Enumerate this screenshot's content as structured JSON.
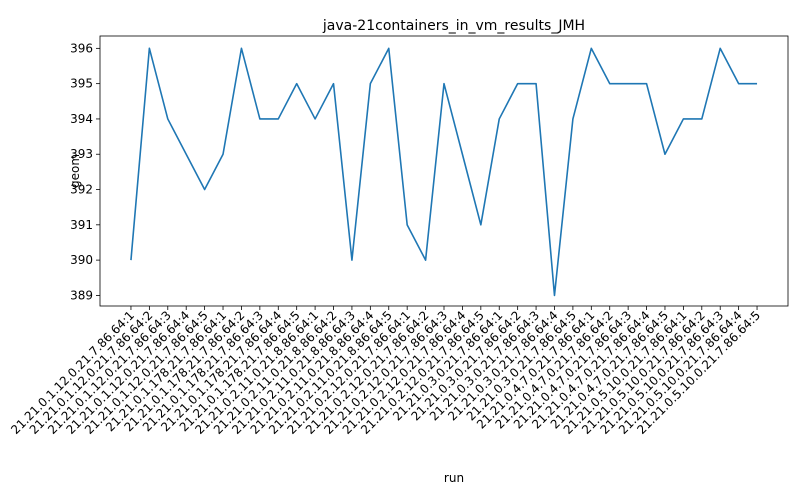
{
  "chart_data": {
    "type": "line",
    "title": "java-21containers_in_vm_results_JMH",
    "xlabel": "run",
    "ylabel": "geom",
    "ylim": [
      388.7,
      396.35
    ],
    "yticks": [
      389,
      390,
      391,
      392,
      393,
      394,
      395,
      396
    ],
    "grid": false,
    "line_color": "#1f77b4",
    "categories": [
      "21.21.0.1.12.0.21.7.86.64:1",
      "21.21.0.1.12.0.21.7.86.64:2",
      "21.21.0.1.12.0.21.7.86.64:3",
      "21.21.0.1.12.0.21.7.86.64:4",
      "21.21.0.1.12.0.21.7.86.64:5",
      "21.21.0.1.178.21.7.86.64:1",
      "21.21.0.1.178.21.7.86.64:2",
      "21.21.0.1.178.21.7.86.64:3",
      "21.21.0.1.178.21.7.86.64:4",
      "21.21.0.1.178.21.7.86.64:5",
      "21.21.0.2.11.0.21.8.86.64:1",
      "21.21.0.2.11.0.21.8.86.64:2",
      "21.21.0.2.11.0.21.8.86.64:3",
      "21.21.0.2.11.0.21.8.86.64:4",
      "21.21.0.2.11.0.21.8.86.64:5",
      "21.21.0.2.12.0.21.7.86.64:1",
      "21.21.0.2.12.0.21.7.86.64:2",
      "21.21.0.2.12.0.21.7.86.64:3",
      "21.21.0.2.12.0.21.7.86.64:4",
      "21.21.0.2.12.0.21.7.86.64:5",
      "21.21.0.3.0.21.7.86.64:1",
      "21.21.0.3.0.21.7.86.64:2",
      "21.21.0.3.0.21.7.86.64:3",
      "21.21.0.3.0.21.7.86.64:4",
      "21.21.0.3.0.21.7.86.64:5",
      "21.21.0.4.7.0.21.7.86.64:1",
      "21.21.0.4.7.0.21.7.86.64:2",
      "21.21.0.4.7.0.21.7.86.64:3",
      "21.21.0.4.7.0.21.7.86.64:4",
      "21.21.0.4.7.0.21.7.86.64:5",
      "21.21.0.5.10.0.21.7.86.64:1",
      "21.21.0.5.10.0.21.7.86.64:2",
      "21.21.0.5.10.0.21.7.86.64:3",
      "21.21.0.5.10.0.21.7.86.64:4",
      "21.21.0.5.10.0.21.7.86.64:5"
    ],
    "values": [
      390,
      396,
      394,
      393,
      392,
      393,
      396,
      394,
      394,
      395,
      394,
      395,
      390,
      395,
      396,
      391,
      390,
      395,
      393,
      391,
      394,
      395,
      395,
      389,
      394,
      396,
      395,
      395,
      395,
      393,
      394,
      394,
      396,
      395,
      395
    ]
  }
}
